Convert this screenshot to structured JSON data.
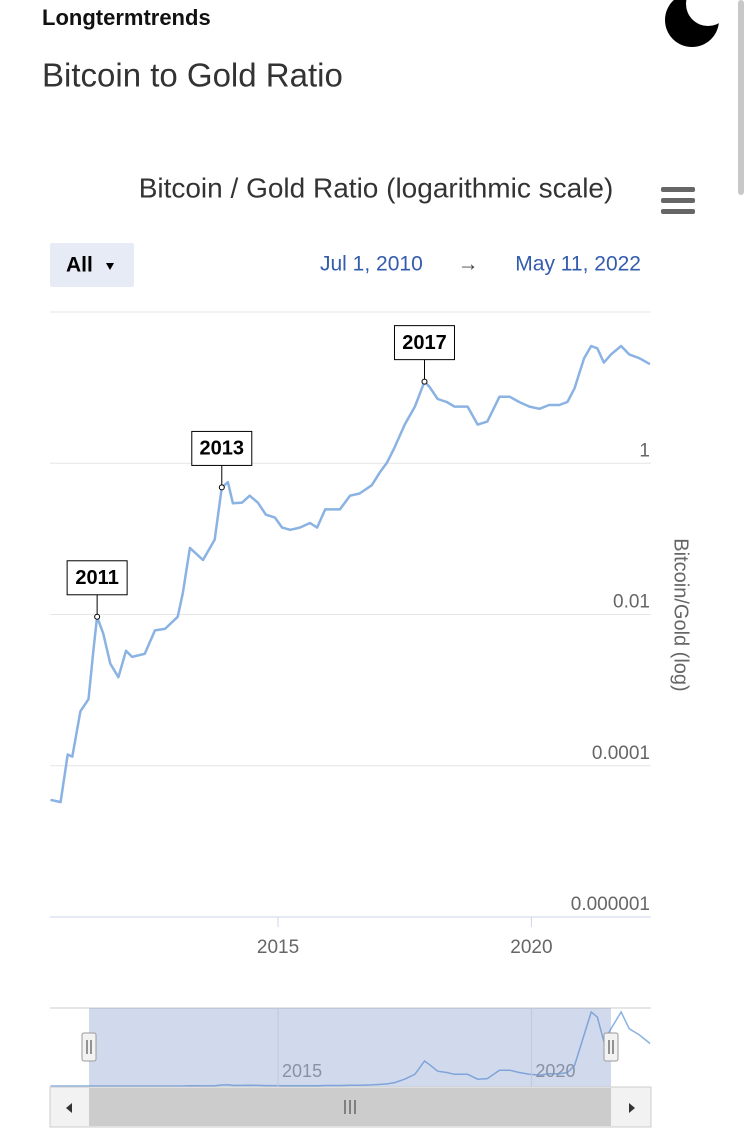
{
  "header": {
    "site": "Longtermtrends",
    "page_title": "Bitcoin to Gold Ratio"
  },
  "chart_data": {
    "type": "line",
    "title": "Bitcoin / Gold Ratio (logarithmic scale)",
    "range_button": "All",
    "date_from": "Jul 1, 2010",
    "date_separator": "→",
    "date_to": "May 11, 2022",
    "y_label": "Bitcoin/Gold (log)",
    "log_scale": true,
    "grid": true,
    "color": "#8ab2e3",
    "xlim": [
      2010.5,
      2022.36
    ],
    "xticks": [
      2015,
      2020
    ],
    "ylim": [
      1e-06,
      100
    ],
    "yticks": [
      1e-06,
      0.0001,
      0.01,
      1
    ],
    "x": [
      2010.51,
      2010.71,
      2010.85,
      2010.94,
      2011.1,
      2011.26,
      2011.36,
      2011.43,
      2011.55,
      2011.69,
      2011.85,
      2012.0,
      2012.12,
      2012.37,
      2012.57,
      2012.77,
      2013.02,
      2013.12,
      2013.26,
      2013.52,
      2013.75,
      2013.89,
      2014.01,
      2014.11,
      2014.29,
      2014.44,
      2014.6,
      2014.76,
      2014.94,
      2015.08,
      2015.24,
      2015.43,
      2015.63,
      2015.77,
      2015.93,
      2016.22,
      2016.42,
      2016.61,
      2016.85,
      2017.01,
      2017.15,
      2017.3,
      2017.5,
      2017.7,
      2017.89,
      2017.99,
      2018.15,
      2018.33,
      2018.48,
      2018.74,
      2018.94,
      2019.13,
      2019.37,
      2019.57,
      2019.76,
      2019.96,
      2020.16,
      2020.35,
      2020.55,
      2020.71,
      2020.85,
      2021.04,
      2021.18,
      2021.3,
      2021.43,
      2021.57,
      2021.77,
      2021.93,
      2022.13,
      2022.34
    ],
    "values": [
      3.55e-05,
      3.31e-05,
      0.000141,
      0.000132,
      0.000525,
      0.000759,
      0.00355,
      0.00933,
      0.00562,
      0.00224,
      0.00148,
      0.00331,
      0.00275,
      0.00302,
      0.00617,
      0.00646,
      0.00933,
      0.0191,
      0.0759,
      0.0525,
      0.0977,
      0.479,
      0.562,
      0.295,
      0.302,
      0.372,
      0.302,
      0.209,
      0.191,
      0.141,
      0.132,
      0.141,
      0.162,
      0.141,
      0.245,
      0.245,
      0.372,
      0.398,
      0.513,
      0.759,
      1.02,
      1.62,
      3.24,
      5.62,
      12.0,
      10.2,
      7.08,
      6.46,
      5.62,
      5.62,
      3.24,
      3.55,
      7.59,
      7.59,
      6.46,
      5.62,
      5.25,
      5.89,
      5.89,
      6.46,
      9.77,
      24.5,
      35.5,
      33.1,
      21.4,
      27.5,
      35.5,
      27.5,
      24.5,
      20.4
    ],
    "annotations": [
      {
        "text": "2011",
        "x": 2011.43,
        "y": 0.00933
      },
      {
        "text": "2013",
        "x": 2013.89,
        "y": 0.479
      },
      {
        "text": "2017",
        "x": 2017.89,
        "y": 12.0
      }
    ]
  }
}
